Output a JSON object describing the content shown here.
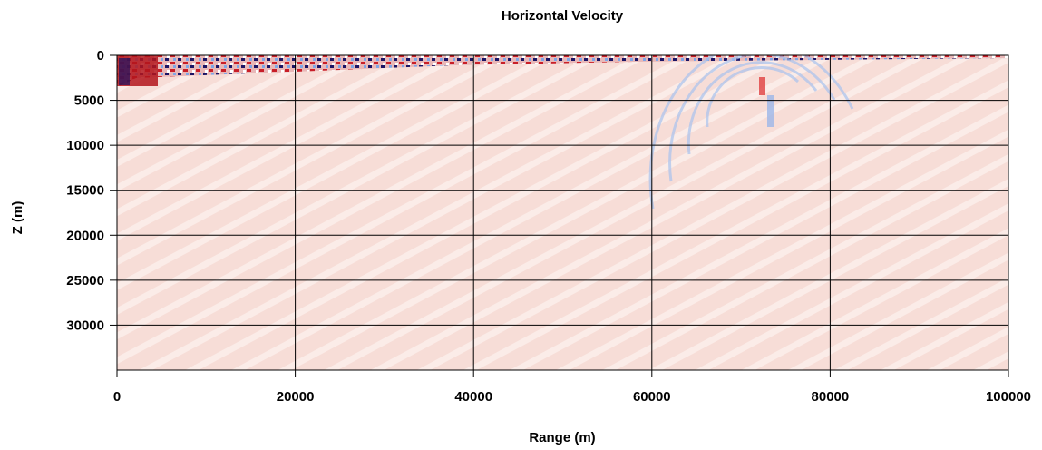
{
  "chart_data": {
    "type": "heatmap",
    "title": "Horizontal Velocity",
    "x_label": "Range (m)",
    "y_label": "Z (m)",
    "xlim": [
      0,
      100000
    ],
    "xticks": [
      0,
      20000,
      40000,
      60000,
      80000,
      100000
    ],
    "ylim": [
      0,
      35000
    ],
    "yticks": [
      0,
      5000,
      10000,
      15000,
      20000,
      25000,
      30000
    ],
    "y_inverted": true,
    "grid": true
  }
}
